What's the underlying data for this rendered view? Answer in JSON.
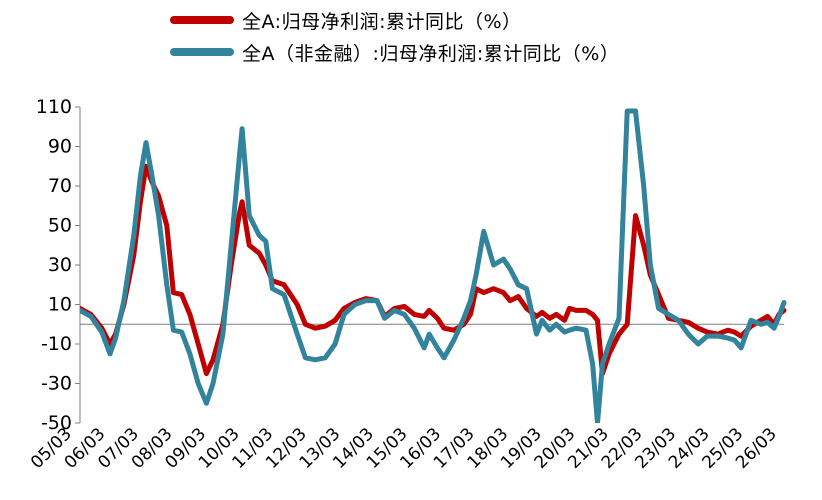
{
  "chart_data": {
    "type": "line",
    "title": "",
    "xlabel": "",
    "ylabel": "",
    "ylim": [
      -50,
      110
    ],
    "yticks": [
      110,
      90,
      70,
      50,
      30,
      10,
      -10,
      -30,
      -50
    ],
    "xticks": [
      "05/03",
      "06/03",
      "07/03",
      "08/03",
      "09/03",
      "10/03",
      "11/03",
      "12/03",
      "13/03",
      "14/03",
      "15/03",
      "16/03",
      "17/03",
      "18/03",
      "19/03",
      "20/03",
      "21/03",
      "22/03",
      "23/03",
      "24/03",
      "25/03",
      "26/03"
    ],
    "zero_line": true,
    "grid": false,
    "legend_position": "top",
    "series": [
      {
        "name": "全A:归母净利润:累计同比（%）",
        "color": "#C00000",
        "points": [
          [
            2005.17,
            8
          ],
          [
            2005.5,
            5
          ],
          [
            2005.83,
            -2
          ],
          [
            2006.08,
            -10
          ],
          [
            2006.25,
            -5
          ],
          [
            2006.5,
            10
          ],
          [
            2006.8,
            35
          ],
          [
            2007.0,
            62
          ],
          [
            2007.17,
            80
          ],
          [
            2007.35,
            72
          ],
          [
            2007.55,
            65
          ],
          [
            2007.8,
            50
          ],
          [
            2008.0,
            16
          ],
          [
            2008.25,
            15
          ],
          [
            2008.5,
            5
          ],
          [
            2008.75,
            -10
          ],
          [
            2009.0,
            -25
          ],
          [
            2009.2,
            -18
          ],
          [
            2009.5,
            0
          ],
          [
            2009.75,
            30
          ],
          [
            2010.0,
            56
          ],
          [
            2010.08,
            62
          ],
          [
            2010.3,
            40
          ],
          [
            2010.6,
            36
          ],
          [
            2010.8,
            30
          ],
          [
            2011.0,
            22
          ],
          [
            2011.35,
            20
          ],
          [
            2011.75,
            10
          ],
          [
            2012.0,
            0
          ],
          [
            2012.3,
            -2
          ],
          [
            2012.6,
            -1
          ],
          [
            2012.9,
            2
          ],
          [
            2013.17,
            8
          ],
          [
            2013.5,
            11
          ],
          [
            2013.83,
            13
          ],
          [
            2014.17,
            12
          ],
          [
            2014.4,
            4
          ],
          [
            2014.7,
            8
          ],
          [
            2015.0,
            9
          ],
          [
            2015.3,
            5
          ],
          [
            2015.6,
            4
          ],
          [
            2015.75,
            7
          ],
          [
            2016.0,
            3
          ],
          [
            2016.2,
            -2
          ],
          [
            2016.5,
            -3
          ],
          [
            2016.8,
            0
          ],
          [
            2017.0,
            5
          ],
          [
            2017.17,
            18
          ],
          [
            2017.4,
            16
          ],
          [
            2017.7,
            18
          ],
          [
            2018.0,
            16
          ],
          [
            2018.2,
            12
          ],
          [
            2018.45,
            14
          ],
          [
            2018.7,
            8
          ],
          [
            2019.0,
            4
          ],
          [
            2019.17,
            6
          ],
          [
            2019.4,
            3
          ],
          [
            2019.6,
            5
          ],
          [
            2019.85,
            2
          ],
          [
            2020.0,
            8
          ],
          [
            2020.2,
            7
          ],
          [
            2020.5,
            7
          ],
          [
            2020.7,
            5
          ],
          [
            2020.85,
            2
          ],
          [
            2021.0,
            -25
          ],
          [
            2021.2,
            -15
          ],
          [
            2021.5,
            -5
          ],
          [
            2021.75,
            0
          ],
          [
            2022.0,
            55
          ],
          [
            2022.25,
            40
          ],
          [
            2022.45,
            25
          ],
          [
            2022.7,
            15
          ],
          [
            2023.0,
            3
          ],
          [
            2023.3,
            2
          ],
          [
            2023.6,
            1
          ],
          [
            2023.9,
            -2
          ],
          [
            2024.17,
            -4
          ],
          [
            2024.5,
            -5
          ],
          [
            2024.8,
            -3
          ],
          [
            2025.0,
            -4
          ],
          [
            2025.2,
            -6
          ],
          [
            2025.5,
            -1
          ],
          [
            2025.8,
            2
          ],
          [
            2026.0,
            4
          ],
          [
            2026.2,
            0
          ],
          [
            2026.35,
            5
          ],
          [
            2026.5,
            7
          ]
        ]
      },
      {
        "name": "全A（非金融）:归母净利润:累计同比（%）",
        "color": "#31849B",
        "points": [
          [
            2005.17,
            7
          ],
          [
            2005.5,
            4
          ],
          [
            2005.83,
            -4
          ],
          [
            2006.08,
            -15
          ],
          [
            2006.25,
            -7
          ],
          [
            2006.5,
            12
          ],
          [
            2006.8,
            45
          ],
          [
            2007.0,
            75
          ],
          [
            2007.17,
            92
          ],
          [
            2007.35,
            75
          ],
          [
            2007.55,
            55
          ],
          [
            2007.8,
            20
          ],
          [
            2008.0,
            -3
          ],
          [
            2008.25,
            -4
          ],
          [
            2008.5,
            -15
          ],
          [
            2008.75,
            -30
          ],
          [
            2009.0,
            -40
          ],
          [
            2009.2,
            -30
          ],
          [
            2009.5,
            -5
          ],
          [
            2009.75,
            40
          ],
          [
            2010.0,
            85
          ],
          [
            2010.08,
            99
          ],
          [
            2010.3,
            55
          ],
          [
            2010.6,
            45
          ],
          [
            2010.8,
            42
          ],
          [
            2011.0,
            18
          ],
          [
            2011.35,
            15
          ],
          [
            2011.75,
            -5
          ],
          [
            2012.0,
            -17
          ],
          [
            2012.3,
            -18
          ],
          [
            2012.6,
            -17
          ],
          [
            2012.9,
            -10
          ],
          [
            2013.17,
            5
          ],
          [
            2013.5,
            10
          ],
          [
            2013.83,
            12
          ],
          [
            2014.17,
            12
          ],
          [
            2014.4,
            3
          ],
          [
            2014.7,
            7
          ],
          [
            2015.0,
            5
          ],
          [
            2015.3,
            -2
          ],
          [
            2015.6,
            -12
          ],
          [
            2015.75,
            -5
          ],
          [
            2016.0,
            -12
          ],
          [
            2016.2,
            -17
          ],
          [
            2016.5,
            -8
          ],
          [
            2016.8,
            3
          ],
          [
            2017.0,
            12
          ],
          [
            2017.17,
            25
          ],
          [
            2017.4,
            47
          ],
          [
            2017.7,
            30
          ],
          [
            2018.0,
            33
          ],
          [
            2018.2,
            28
          ],
          [
            2018.45,
            20
          ],
          [
            2018.7,
            18
          ],
          [
            2019.0,
            -5
          ],
          [
            2019.17,
            2
          ],
          [
            2019.4,
            -3
          ],
          [
            2019.6,
            0
          ],
          [
            2019.85,
            -4
          ],
          [
            2020.0,
            -3
          ],
          [
            2020.2,
            -2
          ],
          [
            2020.5,
            -3
          ],
          [
            2020.7,
            -20
          ],
          [
            2020.85,
            -50
          ],
          [
            2021.0,
            -20
          ],
          [
            2021.2,
            -10
          ],
          [
            2021.5,
            3
          ],
          [
            2021.75,
            108
          ],
          [
            2022.0,
            108
          ],
          [
            2022.25,
            70
          ],
          [
            2022.45,
            30
          ],
          [
            2022.7,
            8
          ],
          [
            2023.0,
            5
          ],
          [
            2023.3,
            2
          ],
          [
            2023.6,
            -5
          ],
          [
            2023.9,
            -10
          ],
          [
            2024.17,
            -6
          ],
          [
            2024.5,
            -6
          ],
          [
            2024.8,
            -7
          ],
          [
            2025.0,
            -8
          ],
          [
            2025.2,
            -12
          ],
          [
            2025.5,
            2
          ],
          [
            2025.8,
            0
          ],
          [
            2026.0,
            1
          ],
          [
            2026.2,
            -2
          ],
          [
            2026.35,
            4
          ],
          [
            2026.5,
            11
          ]
        ]
      }
    ]
  }
}
